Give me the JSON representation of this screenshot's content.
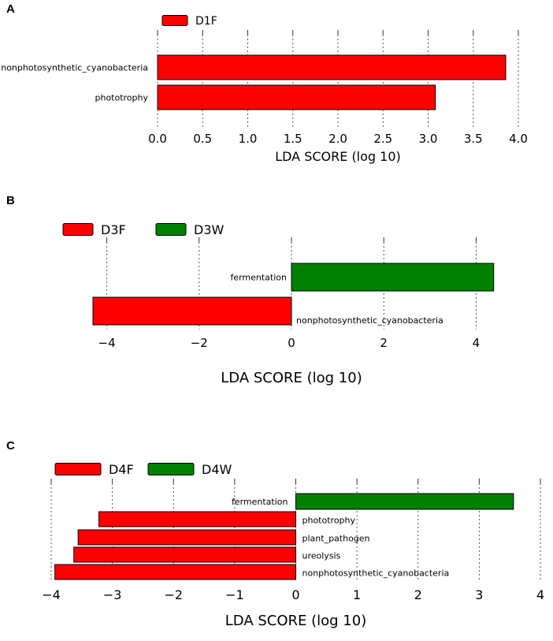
{
  "colors": {
    "D1F": "#ff0000",
    "D3F": "#ff0000",
    "D3W": "#008000",
    "D4F": "#ff0000",
    "D4W": "#008000"
  },
  "chart_data": [
    {
      "panel": "A",
      "type": "bar",
      "orientation": "horizontal",
      "title": "",
      "xlabel": "LDA SCORE (log 10)",
      "xlim": [
        0,
        4.0
      ],
      "xticks": [
        "0.0",
        "0.5",
        "1.0",
        "1.5",
        "2.0",
        "2.5",
        "3.0",
        "3.5",
        "4.0"
      ],
      "tick_values": [
        0,
        0.5,
        1.0,
        1.5,
        2.0,
        2.5,
        3.0,
        3.5,
        4.0
      ],
      "legend": [
        {
          "name": "D1F",
          "color": "#ff0000"
        }
      ],
      "bars": [
        {
          "label": "nonphotosynthetic_cyanobacteria",
          "value": 3.86,
          "group": "D1F"
        },
        {
          "label": "phototrophy",
          "value": 3.08,
          "group": "D1F"
        }
      ]
    },
    {
      "panel": "B",
      "type": "bar",
      "orientation": "horizontal",
      "title": "",
      "xlabel": "LDA SCORE (log 10)",
      "xlim": [
        -4.3,
        4.3
      ],
      "xticks": [
        "−4",
        "−2",
        "0",
        "2",
        "4"
      ],
      "tick_values": [
        -4,
        -2,
        0,
        2,
        4
      ],
      "legend": [
        {
          "name": "D3F",
          "color": "#ff0000"
        },
        {
          "name": "D3W",
          "color": "#008000"
        }
      ],
      "bars": [
        {
          "label": "fermentation",
          "value": 4.38,
          "group": "D3W"
        },
        {
          "label": "nonphotosynthetic_cyanobacteria",
          "value": -4.3,
          "group": "D3F"
        }
      ]
    },
    {
      "panel": "C",
      "type": "bar",
      "orientation": "horizontal",
      "title": "",
      "xlabel": "LDA SCORE (log 10)",
      "xlim": [
        -4,
        4
      ],
      "xticks": [
        "−4",
        "−3",
        "−2",
        "−1",
        "0",
        "1",
        "2",
        "3",
        "4"
      ],
      "tick_values": [
        -4,
        -3,
        -2,
        -1,
        0,
        1,
        2,
        3,
        4
      ],
      "legend": [
        {
          "name": "D4F",
          "color": "#ff0000"
        },
        {
          "name": "D4W",
          "color": "#008000"
        }
      ],
      "bars": [
        {
          "label": "fermentation",
          "value": 3.56,
          "group": "D4W"
        },
        {
          "label": "phototrophy",
          "value": -3.22,
          "group": "D4F"
        },
        {
          "label": "plant_pathogen",
          "value": -3.56,
          "group": "D4F"
        },
        {
          "label": "ureolysis",
          "value": -3.63,
          "group": "D4F"
        },
        {
          "label": "nonphotosynthetic_cyanobacteria",
          "value": -3.94,
          "group": "D4F"
        }
      ]
    }
  ]
}
